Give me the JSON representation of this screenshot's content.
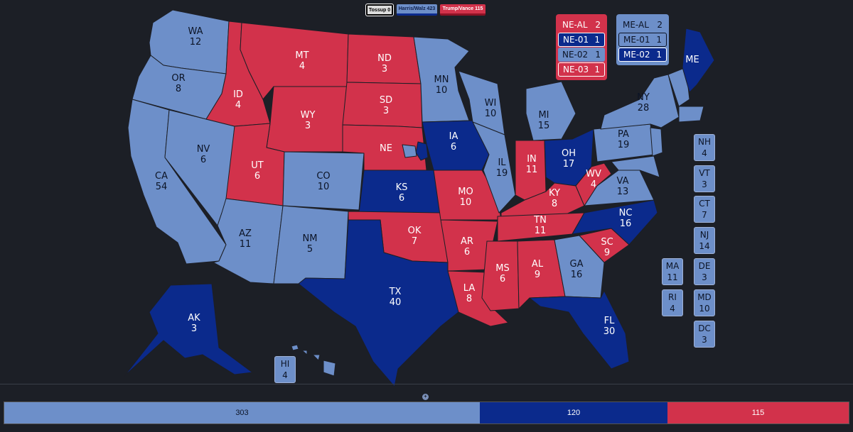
{
  "header": {
    "tossup_label": "Tossup 0",
    "harris_label": "Harris/Walz 423",
    "trump_label": "Trump/Vance 115"
  },
  "colors": {
    "background": "#1c1f26",
    "lean_dem": "#6d8fc9",
    "safe_dem": "#0b2a8c",
    "rep": "#d2324b",
    "tossup": "#dcdcdc"
  },
  "states": {
    "WA": {
      "abbr": "WA",
      "ev": "12"
    },
    "OR": {
      "abbr": "OR",
      "ev": "8"
    },
    "CA": {
      "abbr": "CA",
      "ev": "54"
    },
    "NV": {
      "abbr": "NV",
      "ev": "6"
    },
    "ID": {
      "abbr": "ID",
      "ev": "4"
    },
    "MT": {
      "abbr": "MT",
      "ev": "4"
    },
    "WY": {
      "abbr": "WY",
      "ev": "3"
    },
    "UT": {
      "abbr": "UT",
      "ev": "6"
    },
    "AZ": {
      "abbr": "AZ",
      "ev": "11"
    },
    "CO": {
      "abbr": "CO",
      "ev": "10"
    },
    "NM": {
      "abbr": "NM",
      "ev": "5"
    },
    "ND": {
      "abbr": "ND",
      "ev": "3"
    },
    "SD": {
      "abbr": "SD",
      "ev": "3"
    },
    "NE": {
      "abbr": "NE",
      "ev": ""
    },
    "KS": {
      "abbr": "KS",
      "ev": "6"
    },
    "OK": {
      "abbr": "OK",
      "ev": "7"
    },
    "TX": {
      "abbr": "TX",
      "ev": "40"
    },
    "MN": {
      "abbr": "MN",
      "ev": "10"
    },
    "IA": {
      "abbr": "IA",
      "ev": "6"
    },
    "MO": {
      "abbr": "MO",
      "ev": "10"
    },
    "AR": {
      "abbr": "AR",
      "ev": "6"
    },
    "LA": {
      "abbr": "LA",
      "ev": "8"
    },
    "WI": {
      "abbr": "WI",
      "ev": "10"
    },
    "IL": {
      "abbr": "IL",
      "ev": "19"
    },
    "MI": {
      "abbr": "MI",
      "ev": "15"
    },
    "IN": {
      "abbr": "IN",
      "ev": "11"
    },
    "OH": {
      "abbr": "OH",
      "ev": "17"
    },
    "KY": {
      "abbr": "KY",
      "ev": "8"
    },
    "TN": {
      "abbr": "TN",
      "ev": "11"
    },
    "MS": {
      "abbr": "MS",
      "ev": "6"
    },
    "AL": {
      "abbr": "AL",
      "ev": "9"
    },
    "GA": {
      "abbr": "GA",
      "ev": "16"
    },
    "FL": {
      "abbr": "FL",
      "ev": "30"
    },
    "SC": {
      "abbr": "SC",
      "ev": "9"
    },
    "NC": {
      "abbr": "NC",
      "ev": "16"
    },
    "VA": {
      "abbr": "VA",
      "ev": "13"
    },
    "WV": {
      "abbr": "WV",
      "ev": "4"
    },
    "PA": {
      "abbr": "PA",
      "ev": "19"
    },
    "NY": {
      "abbr": "NY",
      "ev": "28"
    },
    "ME": {
      "abbr": "ME",
      "ev": ""
    },
    "AK": {
      "abbr": "AK",
      "ev": "3"
    },
    "HI": {
      "abbr": "HI",
      "ev": "4"
    }
  },
  "small_states": {
    "NH": {
      "abbr": "NH",
      "ev": "4"
    },
    "VT": {
      "abbr": "VT",
      "ev": "3"
    },
    "CT": {
      "abbr": "CT",
      "ev": "7"
    },
    "NJ": {
      "abbr": "NJ",
      "ev": "14"
    },
    "DE": {
      "abbr": "DE",
      "ev": "3"
    },
    "MD": {
      "abbr": "MD",
      "ev": "10"
    },
    "DC": {
      "abbr": "DC",
      "ev": "3"
    },
    "MA": {
      "abbr": "MA",
      "ev": "11"
    },
    "RI": {
      "abbr": "RI",
      "ev": "4"
    }
  },
  "ne_districts": [
    {
      "name": "NE-AL",
      "ev": "2"
    },
    {
      "name": "NE-01",
      "ev": "1"
    },
    {
      "name": "NE-02",
      "ev": "1"
    },
    {
      "name": "NE-03",
      "ev": "1"
    }
  ],
  "me_districts": [
    {
      "name": "ME-AL",
      "ev": "2"
    },
    {
      "name": "ME-01",
      "ev": "1"
    },
    {
      "name": "ME-02",
      "ev": "1"
    }
  ],
  "bar": {
    "lean_dem": "303",
    "safe_dem": "120",
    "rep": "115"
  }
}
